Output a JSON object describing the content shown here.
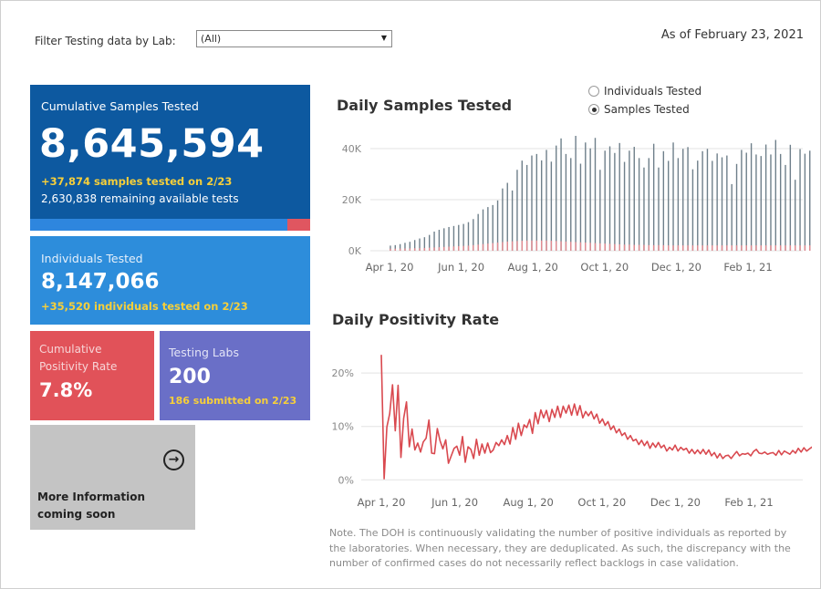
{
  "filter": {
    "label": "Filter Testing data by Lab:",
    "selected": "(All)"
  },
  "as_of": "As of February 23, 2021",
  "samples": {
    "title": "Cumulative Samples Tested",
    "value": "8,645,594",
    "daily": "+37,874 samples tested on 2/23",
    "remaining": "2,630,838 remaining available tests",
    "used_fraction": 0.92
  },
  "individuals": {
    "title": "Individuals Tested",
    "value": "8,147,066",
    "daily": "+35,520  individuals  tested on 2/23"
  },
  "positivity": {
    "title": "Cumulative Positivity Rate",
    "value": "7.8%"
  },
  "labs": {
    "title": "Testing Labs",
    "value": "200",
    "submitted": "186 submitted on 2/23"
  },
  "more_info": {
    "text": "More Information coming soon",
    "icon": "arrow-right-circle-icon"
  },
  "toggle": {
    "options": [
      "Individuals Tested",
      "Samples Tested"
    ],
    "selected": "Samples Tested"
  },
  "colors": {
    "samples_bar": "#6e7f8a",
    "positive_bar": "#e28a90",
    "positivity_line": "#d9494f"
  },
  "chart_data": [
    {
      "type": "bar",
      "title": "Daily Samples Tested",
      "x_ticks": [
        "Apr 1, 20",
        "Jun 1, 20",
        "Aug 1, 20",
        "Oct 1, 20",
        "Dec 1, 20",
        "Feb 1, 21"
      ],
      "y_ticks": [
        "0K",
        "20K",
        "40K"
      ],
      "ylim": [
        0,
        45000
      ],
      "x_start_month": 0.1,
      "x_end_month": 11.8,
      "series": [
        {
          "name": "Samples",
          "values": [
            2000,
            2200,
            2600,
            3100,
            3500,
            4200,
            4800,
            5300,
            6200,
            7500,
            8200,
            8800,
            9300,
            9700,
            10100,
            10500,
            11200,
            12400,
            14400,
            16200,
            17100,
            17900,
            19700,
            24400,
            26600,
            23600,
            31700,
            35300,
            33600,
            37300,
            37900,
            35400,
            39500,
            34900,
            41200,
            44000,
            37900,
            36300,
            45000,
            34100,
            42400,
            40100,
            44200,
            31700,
            39200,
            40900,
            38300,
            42200,
            34800,
            39200,
            40700,
            36300,
            32600,
            36300,
            41900,
            32600,
            39000,
            35200,
            42400,
            36300,
            39900,
            40600,
            31900,
            35300,
            39000,
            39900,
            35200,
            38100,
            36600,
            37300,
            26100,
            34000,
            39500,
            38400,
            42100,
            37700,
            37100,
            41600,
            37700,
            43400,
            37900,
            33600,
            41500,
            27800,
            39800,
            38000,
            39200
          ]
        },
        {
          "name": "Positive",
          "values": [
            800,
            820,
            860,
            900,
            900,
            1000,
            1000,
            1100,
            1200,
            1300,
            1400,
            1500,
            1600,
            1700,
            1800,
            1900,
            2000,
            2200,
            2400,
            2600,
            2800,
            3000,
            3200,
            3400,
            3600,
            3700,
            3800,
            3900,
            4000,
            4000,
            4000,
            4000,
            4000,
            3900,
            3800,
            3700,
            3600,
            3500,
            3400,
            3300,
            3200,
            3100,
            3000,
            2900,
            2800,
            2700,
            2600,
            2500,
            2400,
            2400,
            2300,
            2300,
            2300,
            2200,
            2200,
            2200,
            2200,
            2100,
            2100,
            2100,
            2100,
            2100,
            2100,
            2100,
            2100,
            2100,
            2100,
            2100,
            2100,
            2100,
            2100,
            2100,
            2100,
            2100,
            2100,
            2100,
            2100,
            2100,
            2100,
            2100,
            2100,
            2100,
            2100,
            2100,
            2100,
            2100,
            2100
          ]
        }
      ]
    },
    {
      "type": "line",
      "title": "Daily Positivity Rate",
      "x_ticks": [
        "Apr 1, 20",
        "Jun 1, 20",
        "Aug 1, 20",
        "Oct 1, 20",
        "Dec 1, 20",
        "Feb 1, 21"
      ],
      "y_ticks": [
        "0%",
        "10%",
        "20%"
      ],
      "ylim": [
        -2,
        26
      ],
      "x_start_month": 0.0,
      "x_end_month": 11.8,
      "values": [
        23.4,
        0.2,
        9.9,
        12.4,
        17.8,
        9.2,
        17.7,
        4.2,
        11.5,
        14.6,
        6.2,
        9.5,
        5.6,
        6.9,
        5.2,
        7.1,
        7.8,
        11.2,
        5.0,
        4.9,
        9.6,
        7.3,
        5.8,
        7.5,
        3.1,
        4.5,
        5.9,
        6.3,
        4.6,
        8.1,
        3.3,
        6.2,
        5.7,
        4.0,
        7.6,
        4.6,
        6.7,
        5.0,
        6.9,
        5.1,
        5.6,
        7.0,
        6.4,
        7.5,
        6.6,
        8.3,
        6.7,
        9.8,
        7.6,
        10.6,
        8.3,
        10.3,
        9.8,
        11.3,
        8.7,
        12.6,
        10.5,
        13.1,
        11.6,
        13.0,
        10.9,
        13.2,
        11.7,
        13.8,
        11.7,
        13.8,
        12.5,
        14.0,
        12.1,
        14.2,
        12.1,
        13.9,
        11.6,
        12.8,
        12.0,
        12.8,
        11.4,
        12.3,
        10.6,
        11.4,
        10.2,
        10.9,
        9.4,
        10.1,
        8.8,
        9.5,
        8.3,
        8.8,
        7.6,
        8.3,
        7.3,
        7.6,
        6.6,
        7.4,
        6.4,
        7.2,
        5.9,
        6.9,
        6.1,
        7.0,
        6.0,
        6.5,
        5.4,
        6.1,
        5.6,
        6.5,
        5.4,
        6.1,
        5.6,
        5.9,
        5.0,
        5.7,
        4.9,
        5.6,
        4.9,
        5.7,
        4.8,
        5.6,
        4.5,
        5.1,
        4.1,
        4.9,
        4.0,
        4.5,
        4.6,
        4.0,
        4.7,
        5.3,
        4.5,
        4.9,
        4.8,
        5.0,
        4.5,
        5.3,
        5.7,
        5.0,
        4.9,
        5.2,
        4.8,
        5.0,
        5.1,
        4.6,
        5.5,
        4.7,
        5.4,
        5.1,
        4.8,
        5.5,
        5.0,
        5.9,
        5.2,
        6.0,
        5.4,
        5.8,
        6.2,
        6.8
      ]
    }
  ],
  "note": "Note. The DOH is continuously validating the number of positive individuals as reported by the laboratories. When necessary, they are deduplicated. As such, the discrepancy with the number of confirmed cases do not necessarily reflect backlogs in case validation."
}
